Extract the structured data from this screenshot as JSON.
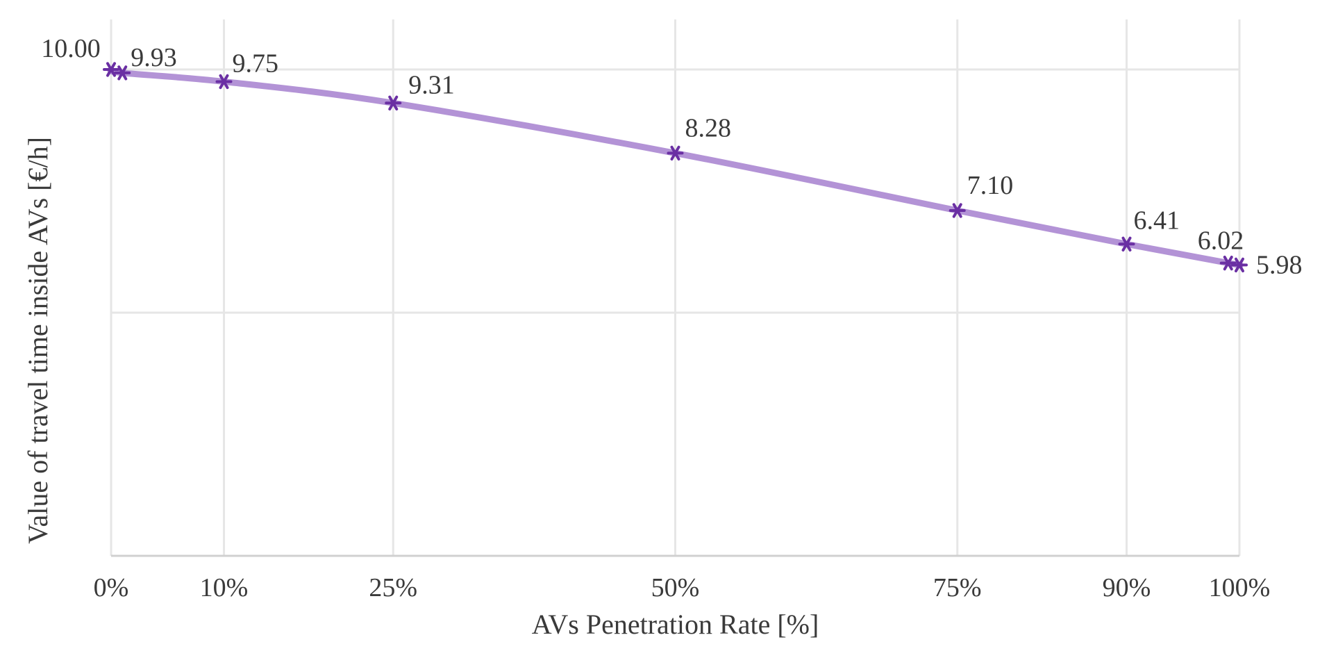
{
  "chart_data": {
    "type": "line",
    "title": "",
    "xlabel": "AVs Penetration Rate [%]",
    "ylabel": "Value of travel time inside AVs [€/h]",
    "x": [
      0,
      1,
      10,
      25,
      50,
      75,
      90,
      99,
      100
    ],
    "x_tick_values": [
      0,
      10,
      25,
      50,
      75,
      90,
      100
    ],
    "x_tick_labels": [
      "0%",
      "10%",
      "25%",
      "50%",
      "75%",
      "90%",
      "100%"
    ],
    "xlim": [
      0,
      100
    ],
    "ylim": [
      0,
      10
    ],
    "y_gridlines": [
      5,
      10
    ],
    "grid": true,
    "legend": "none",
    "series": [
      {
        "values": [
          10.0,
          9.93,
          9.75,
          9.31,
          8.28,
          7.1,
          6.41,
          6.02,
          5.98
        ],
        "data_labels": [
          "10.00",
          "9.93",
          "9.75",
          "9.31",
          "8.28",
          "7.10",
          "6.41",
          "6.02",
          "5.98"
        ],
        "line_color": "#b393d6",
        "marker_color": "#6a2fa3",
        "marker": "asterisk",
        "smooth": true
      }
    ]
  }
}
